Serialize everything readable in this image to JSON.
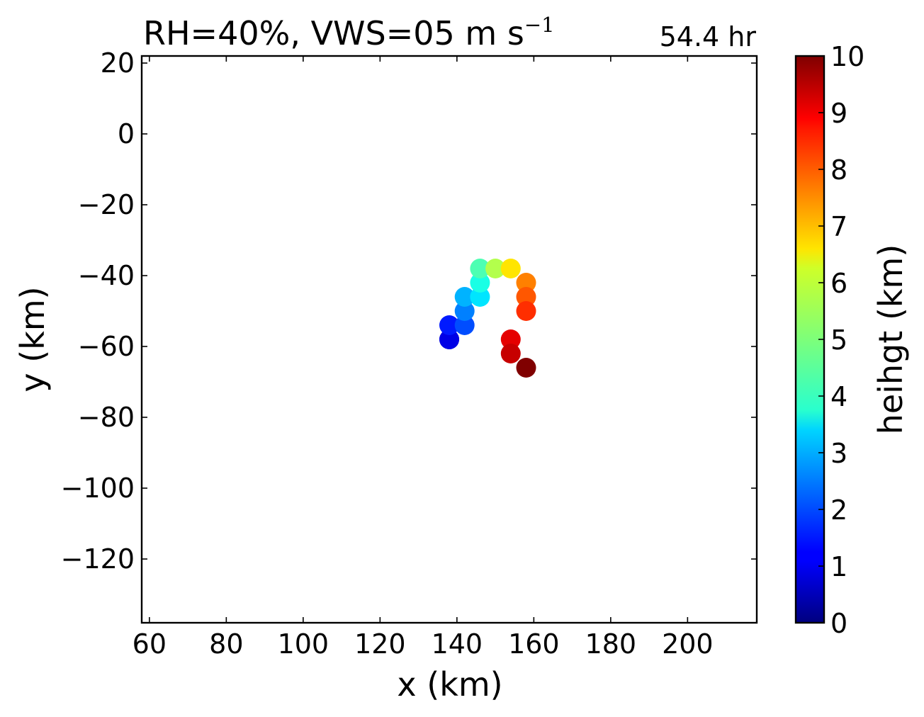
{
  "chart_data": {
    "type": "scatter",
    "title_text": "RH=40%, VWS=05 m s",
    "title_sup": "−1",
    "time_label": "54.4 hr",
    "time_label_color": "#0000ff",
    "xlabel": "x (km)",
    "ylabel": "y (km)",
    "xlim": [
      58,
      218
    ],
    "ylim": [
      -138,
      22
    ],
    "xticks": [
      60,
      80,
      100,
      120,
      140,
      160,
      180,
      200
    ],
    "xtick_labels": [
      "60",
      "80",
      "100",
      "120",
      "140",
      "160",
      "180",
      "200"
    ],
    "yticks": [
      20,
      0,
      -20,
      -40,
      -60,
      -80,
      -100,
      -120
    ],
    "ytick_labels": [
      "20",
      "0",
      "−20",
      "−40",
      "−60",
      "−80",
      "−100",
      "−120"
    ],
    "colorbar": {
      "label": "heihgt (km)",
      "min": 0,
      "max": 10,
      "ticks": [
        0,
        1,
        2,
        3,
        4,
        5,
        6,
        7,
        8,
        9,
        10
      ],
      "tick_labels": [
        "0",
        "1",
        "2",
        "3",
        "4",
        "5",
        "6",
        "7",
        "8",
        "9",
        "10"
      ],
      "colormap": "jet"
    },
    "points": [
      {
        "x": 138,
        "y": -58,
        "height": 0.5
      },
      {
        "x": 138,
        "y": -58,
        "height": 1.0
      },
      {
        "x": 138,
        "y": -54,
        "height": 1.5
      },
      {
        "x": 142,
        "y": -54,
        "height": 2.0
      },
      {
        "x": 142,
        "y": -50,
        "height": 2.5
      },
      {
        "x": 142,
        "y": -46,
        "height": 3.0
      },
      {
        "x": 146,
        "y": -46,
        "height": 3.5
      },
      {
        "x": 146,
        "y": -42,
        "height": 4.0
      },
      {
        "x": 146,
        "y": -38,
        "height": 4.5
      },
      {
        "x": 150,
        "y": -38,
        "height": 5.5
      },
      {
        "x": 154,
        "y": -38,
        "height": 6.5
      },
      {
        "x": 158,
        "y": -42,
        "height": 7.5
      },
      {
        "x": 158,
        "y": -46,
        "height": 7.9
      },
      {
        "x": 158,
        "y": -50,
        "height": 8.3
      },
      {
        "x": 154,
        "y": -58,
        "height": 9.0
      },
      {
        "x": 154,
        "y": -62,
        "height": 9.3
      },
      {
        "x": 158,
        "y": -66,
        "height": 10.0
      }
    ]
  }
}
